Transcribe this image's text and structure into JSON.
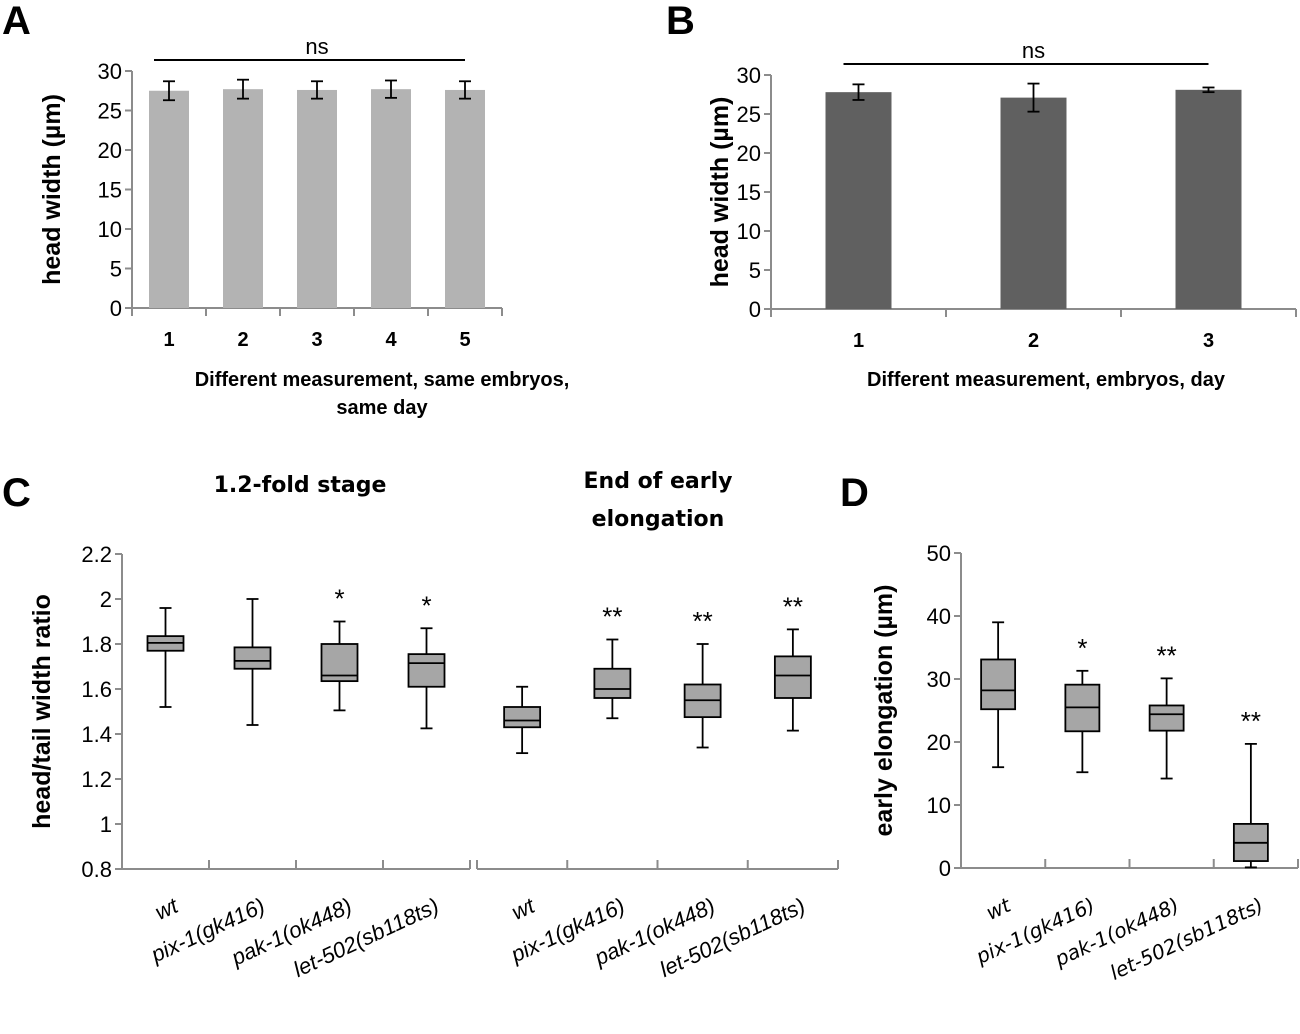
{
  "panels": {
    "A": {
      "letter": "A"
    },
    "B": {
      "letter": "B"
    },
    "C": {
      "letter": "C"
    },
    "D": {
      "letter": "D"
    }
  },
  "colors": {
    "barA": "#b3b3b3",
    "barB": "#606060",
    "box": "#a6a6a6",
    "axis": "#8c8c8c",
    "ink": "#000000"
  },
  "chart_data": [
    {
      "id": "A",
      "type": "bar",
      "title": "",
      "categories": [
        "1",
        "2",
        "3",
        "4",
        "5"
      ],
      "values": [
        27.5,
        27.7,
        27.6,
        27.7,
        27.6
      ],
      "errors": [
        1.2,
        1.2,
        1.1,
        1.1,
        1.1
      ],
      "xlabel": "Different measurement, same embryos, same day",
      "xlabel_lines": [
        "Different measurement, same embryos,",
        "same day"
      ],
      "ylabel": "head width (µm)",
      "ylim": [
        0,
        30
      ],
      "yticks": [
        "0",
        "5",
        "10",
        "15",
        "20",
        "25",
        "30"
      ],
      "annotation": "ns",
      "grid": false,
      "legend": "none"
    },
    {
      "id": "B",
      "type": "bar",
      "title": "",
      "categories": [
        "1",
        "2",
        "3"
      ],
      "values": [
        27.8,
        27.1,
        28.1
      ],
      "errors": [
        1.0,
        1.8,
        0.3
      ],
      "xlabel": "Different measurement, embryos, day",
      "ylabel": "head width (µm)",
      "ylim": [
        0,
        30
      ],
      "yticks": [
        "0",
        "5",
        "10",
        "15",
        "20",
        "25",
        "30"
      ],
      "annotation": "ns",
      "grid": false,
      "legend": "none"
    },
    {
      "id": "C",
      "type": "box",
      "ylabel": "head/tail width ratio",
      "ylim": [
        0.8,
        2.2
      ],
      "yticks": [
        "0.8",
        "1",
        "1.2",
        "1.4",
        "1.6",
        "1.8",
        "2",
        "2.2"
      ],
      "groups": [
        {
          "title": "1.2-fold stage",
          "categories": [
            "wt",
            "pix-1(gk416)",
            "pak-1(ok448)",
            "let-502(sb118ts)"
          ],
          "boxes": [
            {
              "min": 1.52,
              "q1": 1.77,
              "median": 1.805,
              "q3": 1.835,
              "max": 1.96,
              "sig": ""
            },
            {
              "min": 1.44,
              "q1": 1.69,
              "median": 1.725,
              "q3": 1.785,
              "max": 2.0,
              "sig": ""
            },
            {
              "min": 1.505,
              "q1": 1.635,
              "median": 1.66,
              "q3": 1.8,
              "max": 1.9,
              "sig": "*"
            },
            {
              "min": 1.425,
              "q1": 1.61,
              "median": 1.715,
              "q3": 1.755,
              "max": 1.87,
              "sig": "*"
            }
          ]
        },
        {
          "title": "End of early elongation",
          "title_lines": [
            "End of early",
            "elongation"
          ],
          "categories": [
            "wt",
            "pix-1(gk416)",
            "pak-1(ok448)",
            "let-502(sb118ts)"
          ],
          "boxes": [
            {
              "min": 1.315,
              "q1": 1.43,
              "median": 1.46,
              "q3": 1.52,
              "max": 1.61,
              "sig": ""
            },
            {
              "min": 1.47,
              "q1": 1.56,
              "median": 1.6,
              "q3": 1.69,
              "max": 1.82,
              "sig": "**"
            },
            {
              "min": 1.34,
              "q1": 1.475,
              "median": 1.55,
              "q3": 1.62,
              "max": 1.8,
              "sig": "**"
            },
            {
              "min": 1.415,
              "q1": 1.56,
              "median": 1.66,
              "q3": 1.745,
              "max": 1.865,
              "sig": "**"
            }
          ]
        }
      ],
      "grid": false,
      "legend": "none"
    },
    {
      "id": "D",
      "type": "box",
      "ylabel": "early elongation (µm)",
      "ylim": [
        0,
        50
      ],
      "yticks": [
        "0",
        "10",
        "20",
        "30",
        "40",
        "50"
      ],
      "categories": [
        "wt",
        "pix-1(gk416)",
        "pak-1(ok448)",
        "let-502(sb118ts)"
      ],
      "boxes": [
        {
          "min": 16,
          "q1": 25.2,
          "median": 28.2,
          "q3": 33.1,
          "max": 39,
          "sig": ""
        },
        {
          "min": 15.2,
          "q1": 21.7,
          "median": 25.5,
          "q3": 29.1,
          "max": 31.3,
          "sig": "*"
        },
        {
          "min": 14.2,
          "q1": 21.8,
          "median": 24.4,
          "q3": 25.8,
          "max": 30.1,
          "sig": "**"
        },
        {
          "min": 0.1,
          "q1": 1.1,
          "median": 4.0,
          "q3": 7.0,
          "max": 19.7,
          "sig": "**"
        }
      ],
      "grid": false,
      "legend": "none"
    }
  ]
}
